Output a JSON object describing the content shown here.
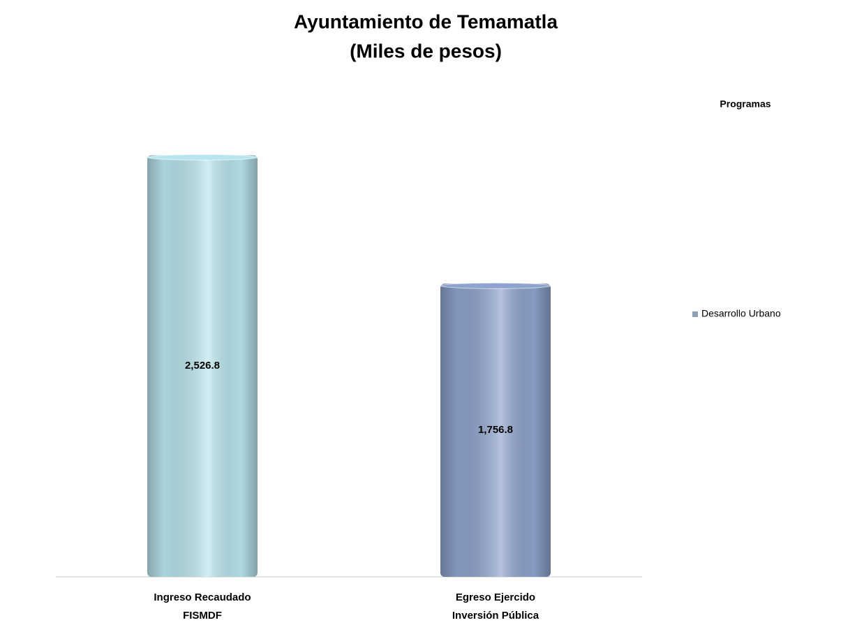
{
  "chart_data": {
    "type": "bar",
    "title": "Ayuntamiento de Temamatla",
    "subtitle": "(Miles de pesos)",
    "categories": [
      [
        "Ingreso Recaudado",
        "FISMDF"
      ],
      [
        "Egreso Ejercido",
        "Inversión Pública"
      ]
    ],
    "series": [
      {
        "name": "Desarrollo Urbano",
        "color": "#8f9fb8",
        "colors": [
          "#b9e6ee",
          "#8ea3cd"
        ],
        "values": [
          2526.8,
          1756.8
        ],
        "value_labels": [
          "2,526.8",
          "1,756.8"
        ]
      }
    ],
    "legend_title": "Programas",
    "legend": "right",
    "ylim": [
      0,
      2800
    ]
  }
}
